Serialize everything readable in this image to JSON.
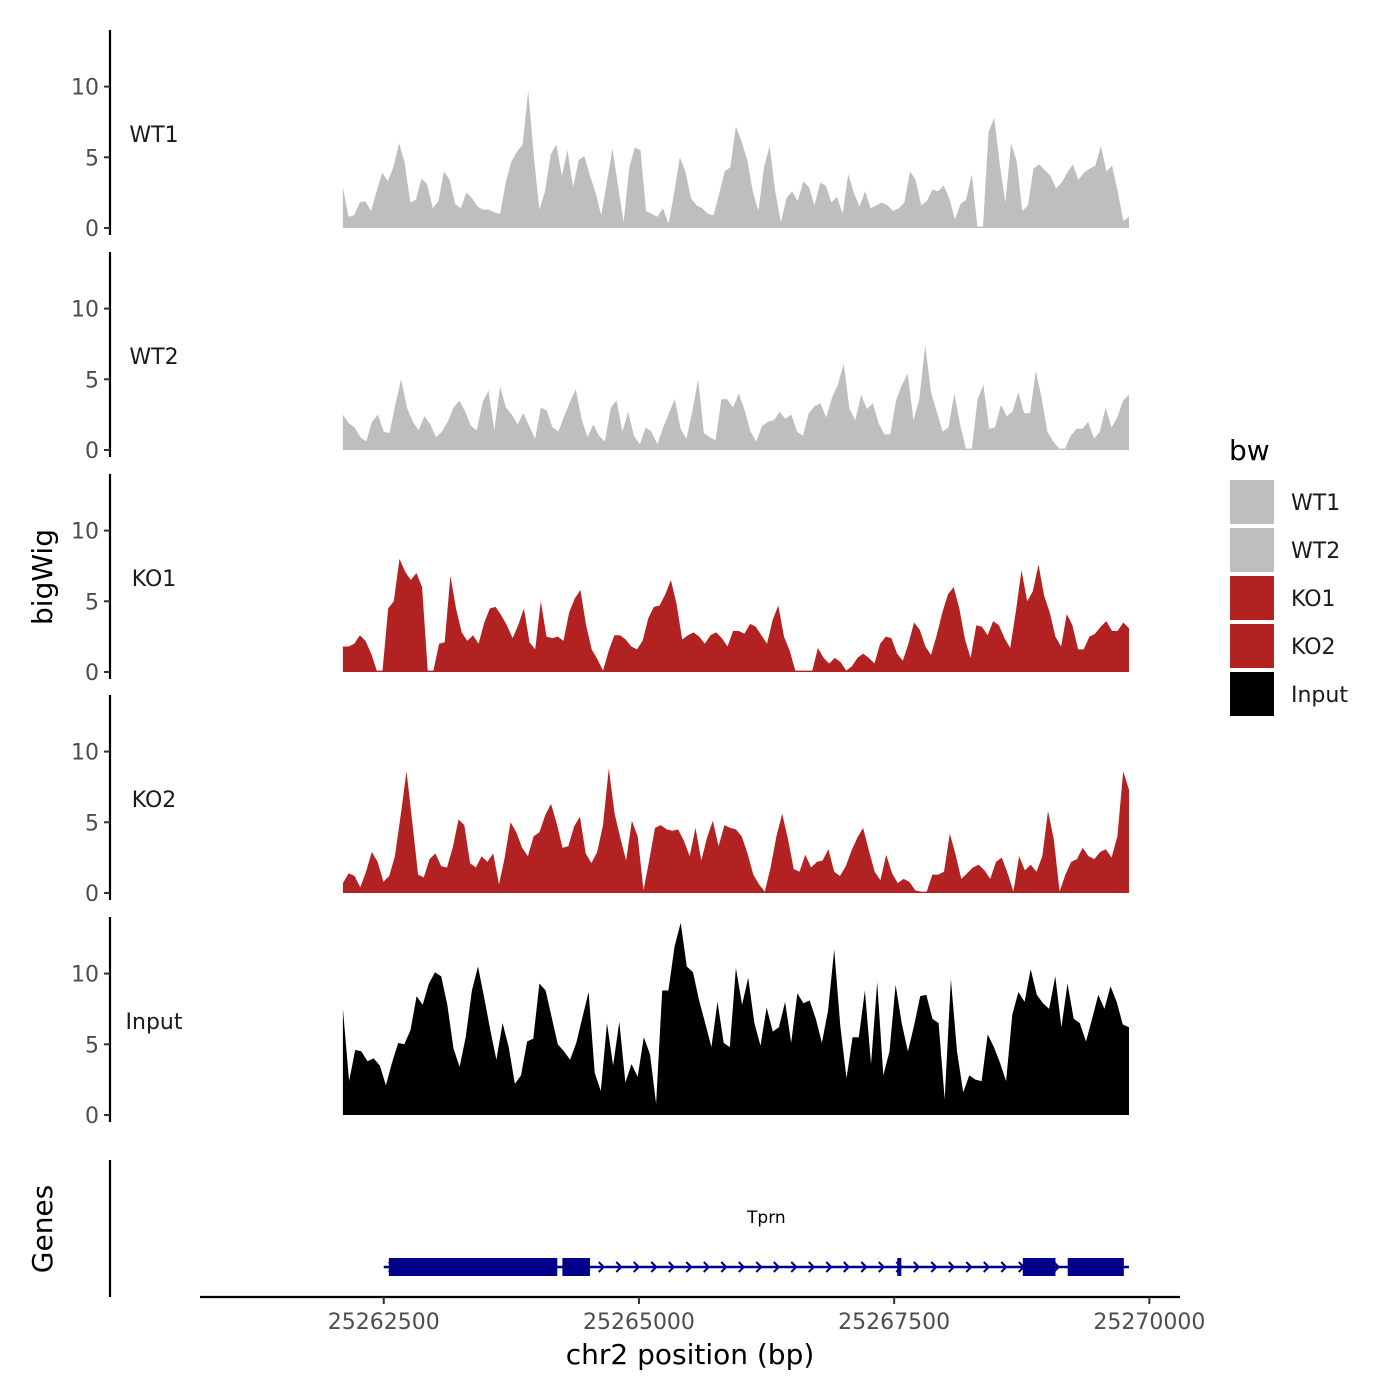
{
  "chart_data": {
    "type": "area",
    "ylabel": "bigWig",
    "xlabel": "chr2 position (bp)",
    "xlim": [
      25260700,
      25270300
    ],
    "ylim": [
      0,
      14
    ],
    "y_ticks": [
      0,
      5,
      10
    ],
    "x_ticks": [
      25262500,
      25265000,
      25267500,
      25270000
    ],
    "x_tick_labels": [
      "25262500",
      "25265000",
      "25267500",
      "25270000"
    ],
    "y_tick_labels": [
      "0",
      "5",
      "10"
    ],
    "x_start": 25262100,
    "x_end": 25269800,
    "legend_title": "bw",
    "legend": [
      {
        "label": "WT1",
        "color": "#bebebe"
      },
      {
        "label": "WT2",
        "color": "#bebebe"
      },
      {
        "label": "KO1",
        "color": "#b22222"
      },
      {
        "label": "KO2",
        "color": "#b22222"
      },
      {
        "label": "Input",
        "color": "#000000"
      }
    ],
    "series": [
      {
        "name": "WT1",
        "color": "#bebebe",
        "values": [
          2.9,
          0.8,
          0.9,
          1.8,
          1.9,
          1.2,
          2.6,
          3.9,
          3.3,
          4.3,
          6.0,
          4.6,
          1.8,
          2.0,
          3.5,
          3.1,
          1.4,
          1.9,
          4.0,
          3.4,
          1.7,
          1.4,
          2.5,
          2.1,
          1.5,
          1.3,
          1.3,
          1.1,
          1.0,
          3.2,
          4.7,
          5.4,
          5.9,
          9.7,
          5.1,
          1.3,
          2.6,
          5.2,
          5.9,
          3.7,
          5.5,
          2.9,
          4.8,
          5.1,
          3.7,
          2.5,
          0.9,
          3.2,
          5.6,
          3.0,
          0.4,
          4.3,
          5.7,
          5.5,
          1.2,
          1.0,
          0.8,
          1.4,
          0.3,
          2.5,
          5.0,
          4.0,
          2.1,
          1.6,
          1.4,
          1.0,
          0.9,
          2.4,
          4.0,
          4.3,
          7.2,
          6.1,
          4.8,
          2.6,
          1.2,
          4.3,
          5.8,
          2.6,
          0.4,
          2.1,
          2.6,
          1.9,
          3.3,
          2.9,
          1.6,
          3.2,
          3.0,
          1.8,
          2.2,
          1.0,
          3.8,
          2.5,
          1.5,
          2.6,
          1.4,
          1.6,
          1.8,
          1.6,
          1.2,
          1.4,
          1.8,
          4.0,
          3.4,
          1.6,
          1.9,
          2.7,
          2.6,
          3.0,
          2.1,
          0.6,
          1.7,
          2.0,
          3.8,
          0.1,
          0.1,
          6.8,
          7.8,
          4.5,
          1.8,
          6.0,
          4.7,
          1.2,
          1.6,
          4.2,
          4.5,
          4.1,
          3.7,
          2.8,
          3.2,
          3.9,
          4.5,
          3.4,
          3.9,
          4.2,
          4.4,
          5.8,
          4.0,
          4.4,
          2.6,
          0.5,
          0.8
        ]
      },
      {
        "name": "WT2",
        "color": "#bebebe",
        "values": [
          2.5,
          1.9,
          1.6,
          0.9,
          0.6,
          2.0,
          2.5,
          1.3,
          1.2,
          3.2,
          5.0,
          3.0,
          2.0,
          1.4,
          2.4,
          1.8,
          0.9,
          1.3,
          2.0,
          3.0,
          3.5,
          2.7,
          1.7,
          1.4,
          3.4,
          4.2,
          1.4,
          4.5,
          3.0,
          2.5,
          1.8,
          2.6,
          1.7,
          0.8,
          3.0,
          2.8,
          1.6,
          1.3,
          2.4,
          3.4,
          4.3,
          2.2,
          0.9,
          1.8,
          1.0,
          0.6,
          3.0,
          3.5,
          1.3,
          2.7,
          1.0,
          0.4,
          1.6,
          1.3,
          0.4,
          1.6,
          2.6,
          3.6,
          1.5,
          0.8,
          2.7,
          5.0,
          1.2,
          0.9,
          0.7,
          3.6,
          3.6,
          3.0,
          4.0,
          2.8,
          1.3,
          0.6,
          1.7,
          2.0,
          2.1,
          2.7,
          2.2,
          2.5,
          1.3,
          1.0,
          2.6,
          3.1,
          3.3,
          2.3,
          3.7,
          4.6,
          6.1,
          2.9,
          2.1,
          3.9,
          2.9,
          3.3,
          1.9,
          1.1,
          1.1,
          3.5,
          4.6,
          5.4,
          2.1,
          3.6,
          7.4,
          4.1,
          2.7,
          1.3,
          1.6,
          4.0,
          1.8,
          0.1,
          0.1,
          3.6,
          4.6,
          1.5,
          1.6,
          3.2,
          2.4,
          2.7,
          4.1,
          2.6,
          2.6,
          5.6,
          3.7,
          1.3,
          0.6,
          0.1,
          0.1,
          1.0,
          1.5,
          1.5,
          2.0,
          0.8,
          1.3,
          3.0,
          1.6,
          2.3,
          3.5,
          3.9
        ]
      },
      {
        "name": "KO1",
        "color": "#b22222",
        "values": [
          1.8,
          1.8,
          2.0,
          2.6,
          2.2,
          1.3,
          0.1,
          0.1,
          4.5,
          5.0,
          8.0,
          7.1,
          6.5,
          7.0,
          6.0,
          0.1,
          0.1,
          2.0,
          2.1,
          6.8,
          4.5,
          2.8,
          2.2,
          2.6,
          2.0,
          3.5,
          4.5,
          4.6,
          4.0,
          3.3,
          2.4,
          3.3,
          4.5,
          2.1,
          1.6,
          5.0,
          2.5,
          2.4,
          2.5,
          2.2,
          4.2,
          5.2,
          5.8,
          3.3,
          1.6,
          0.9,
          0.1,
          1.5,
          2.6,
          2.6,
          2.3,
          1.8,
          1.6,
          2.2,
          3.8,
          4.6,
          4.7,
          5.5,
          6.5,
          4.8,
          2.3,
          2.6,
          2.8,
          2.5,
          2.0,
          2.6,
          2.8,
          2.4,
          1.8,
          2.9,
          2.9,
          2.7,
          3.4,
          3.2,
          2.6,
          2.0,
          3.7,
          4.7,
          2.5,
          1.5,
          0.1,
          0.1,
          0.1,
          0.1,
          1.7,
          1.0,
          0.6,
          1.0,
          0.7,
          0.1,
          0.4,
          1.0,
          1.3,
          1.0,
          0.6,
          2.0,
          2.5,
          2.4,
          1.3,
          0.8,
          2.0,
          3.5,
          3.0,
          1.8,
          1.2,
          2.6,
          4.2,
          5.5,
          6.0,
          4.5,
          2.3,
          1.0,
          3.3,
          3.2,
          2.6,
          3.6,
          3.3,
          2.4,
          1.7,
          4.3,
          7.2,
          5.0,
          5.7,
          7.6,
          5.4,
          4.2,
          2.5,
          1.8,
          4.1,
          3.3,
          1.6,
          1.6,
          2.5,
          2.7,
          3.2,
          3.6,
          2.9,
          2.9,
          3.5,
          3.1
        ]
      },
      {
        "name": "KO2",
        "color": "#b22222",
        "values": [
          0.7,
          1.4,
          1.2,
          0.4,
          1.5,
          2.9,
          2.2,
          0.8,
          1.2,
          2.6,
          5.5,
          8.6,
          5.0,
          1.3,
          1.1,
          2.4,
          2.8,
          1.9,
          1.8,
          3.2,
          5.2,
          4.8,
          2.1,
          1.8,
          2.6,
          2.2,
          2.8,
          0.6,
          2.5,
          5.0,
          4.3,
          3.2,
          2.6,
          4.0,
          4.3,
          5.5,
          6.3,
          4.9,
          3.2,
          3.3,
          4.7,
          5.4,
          2.8,
          2.1,
          2.9,
          4.8,
          8.8,
          5.6,
          3.9,
          2.3,
          5.1,
          4.0,
          0.2,
          2.3,
          4.6,
          4.8,
          4.5,
          4.4,
          4.5,
          3.7,
          2.6,
          4.6,
          2.3,
          3.9,
          5.1,
          3.3,
          4.8,
          4.6,
          4.5,
          4.0,
          2.8,
          1.3,
          0.6,
          0.1,
          1.8,
          4.0,
          5.6,
          3.8,
          1.7,
          1.5,
          2.7,
          1.8,
          2.2,
          2.3,
          3.1,
          1.5,
          1.2,
          1.9,
          3.0,
          3.9,
          4.6,
          3.0,
          1.5,
          0.9,
          2.7,
          1.4,
          0.7,
          1.0,
          0.8,
          0.2,
          0.1,
          0.1,
          1.3,
          1.3,
          1.5,
          4.2,
          2.7,
          1.0,
          1.4,
          1.8,
          2.0,
          1.6,
          1.0,
          2.2,
          2.5,
          1.4,
          0.1,
          2.6,
          1.6,
          2.0,
          1.5,
          2.6,
          5.8,
          3.8,
          0.1,
          1.3,
          2.2,
          2.4,
          3.2,
          2.6,
          2.4,
          2.9,
          3.1,
          2.5,
          4.0,
          8.6,
          7.3
        ]
      },
      {
        "name": "Input",
        "color": "#000000",
        "values": [
          7.5,
          2.4,
          4.6,
          4.5,
          3.8,
          4.0,
          3.5,
          2.1,
          3.7,
          5.1,
          5.0,
          6.0,
          8.4,
          7.8,
          9.3,
          10.1,
          9.8,
          7.8,
          4.7,
          3.4,
          5.5,
          8.8,
          10.5,
          8.3,
          6.0,
          3.9,
          6.5,
          4.8,
          2.2,
          2.8,
          5.2,
          5.4,
          9.3,
          8.8,
          6.9,
          5.0,
          4.5,
          3.9,
          5.1,
          6.9,
          8.7,
          3.0,
          1.7,
          6.5,
          3.5,
          6.6,
          2.3,
          3.6,
          2.7,
          5.5,
          4.3,
          0.8,
          8.8,
          8.8,
          11.9,
          13.6,
          10.5,
          10.1,
          8.1,
          6.5,
          4.8,
          8.0,
          5.1,
          4.8,
          10.4,
          7.8,
          9.7,
          6.5,
          4.9,
          7.6,
          5.9,
          6.2,
          8.0,
          5.1,
          8.6,
          7.9,
          8.1,
          6.8,
          5.1,
          7.4,
          11.7,
          6.3,
          2.6,
          5.5,
          5.5,
          8.8,
          3.6,
          9.4,
          2.8,
          4.5,
          9.2,
          6.5,
          4.5,
          6.3,
          8.4,
          8.5,
          6.8,
          6.5,
          1.1,
          9.6,
          4.5,
          1.6,
          2.8,
          2.5,
          2.4,
          5.7,
          4.8,
          3.7,
          2.4,
          7.1,
          8.7,
          8.0,
          10.3,
          8.5,
          7.9,
          7.5,
          9.8,
          6.2,
          9.3,
          6.8,
          6.5,
          5.2,
          6.8,
          8.5,
          7.5,
          9.1,
          8.0,
          6.4,
          6.2
        ]
      }
    ],
    "genes": [
      {
        "name": "Tprn",
        "start": 25262500,
        "end": 25269800,
        "exons": [
          [
            25262550,
            25264200
          ],
          [
            25264250,
            25264520
          ],
          [
            25267530,
            25267570
          ],
          [
            25268760,
            25269080
          ],
          [
            25269200,
            25269750
          ]
        ],
        "strand": "+"
      }
    ],
    "gene_track_label": "Genes"
  }
}
